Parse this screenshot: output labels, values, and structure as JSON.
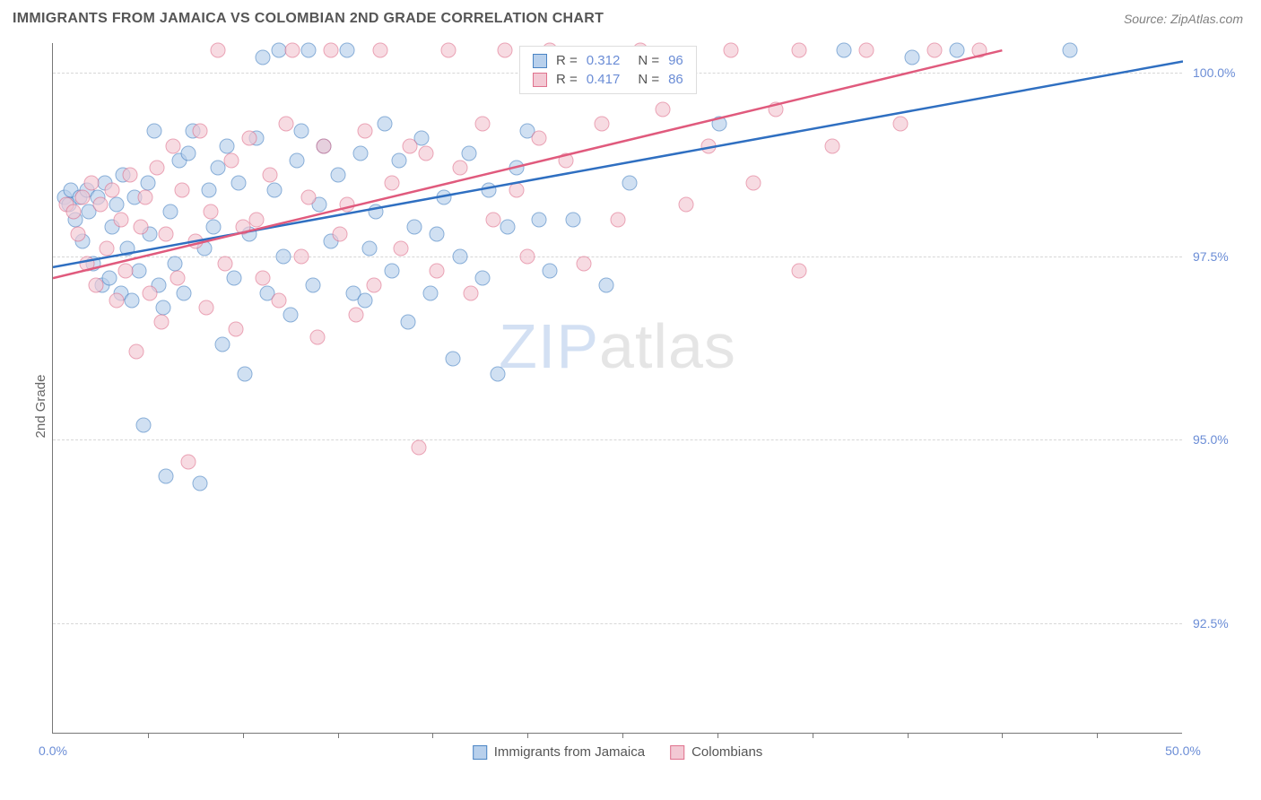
{
  "title": "IMMIGRANTS FROM JAMAICA VS COLOMBIAN 2ND GRADE CORRELATION CHART",
  "source": "Source: ZipAtlas.com",
  "ylabel": "2nd Grade",
  "watermark_a": "ZIP",
  "watermark_b": "atlas",
  "chart": {
    "type": "scatter",
    "xlim": [
      0,
      50
    ],
    "ylim": [
      91,
      100.4
    ],
    "x_ticks": [
      0,
      50
    ],
    "x_minor_ticks": [
      4.2,
      8.4,
      12.6,
      16.8,
      21.0,
      25.2,
      29.4,
      33.6,
      37.8,
      42.0,
      46.2
    ],
    "y_ticks": [
      92.5,
      95.0,
      97.5,
      100.0
    ],
    "y_tick_labels": [
      "92.5%",
      "95.0%",
      "97.5%",
      "100.0%"
    ],
    "x_tick_labels": [
      "0.0%",
      "50.0%"
    ],
    "background_color": "#ffffff",
    "grid_color": "#d7d7d7",
    "axis_color": "#777777",
    "tick_label_color": "#6b8dd6",
    "marker_radius": 8.5,
    "marker_opacity": 0.65,
    "series": [
      {
        "name": "Immigrants from Jamaica",
        "fill": "#b8d0ec",
        "stroke": "#4a84c4",
        "trend_color": "#2f6fc1",
        "trend_width": 2.5,
        "R": "0.312",
        "N": "96",
        "trend": {
          "x1": 0,
          "y1": 97.35,
          "x2": 50,
          "y2": 100.15
        },
        "points": [
          [
            0.5,
            98.3
          ],
          [
            0.7,
            98.2
          ],
          [
            0.8,
            98.4
          ],
          [
            1.0,
            98.0
          ],
          [
            1.2,
            98.3
          ],
          [
            1.3,
            97.7
          ],
          [
            1.5,
            98.4
          ],
          [
            1.6,
            98.1
          ],
          [
            1.8,
            97.4
          ],
          [
            2.0,
            98.3
          ],
          [
            2.2,
            97.1
          ],
          [
            2.3,
            98.5
          ],
          [
            2.5,
            97.2
          ],
          [
            2.6,
            97.9
          ],
          [
            2.8,
            98.2
          ],
          [
            3.0,
            97.0
          ],
          [
            3.1,
            98.6
          ],
          [
            3.3,
            97.6
          ],
          [
            3.5,
            96.9
          ],
          [
            3.6,
            98.3
          ],
          [
            3.8,
            97.3
          ],
          [
            4.0,
            95.2
          ],
          [
            4.2,
            98.5
          ],
          [
            4.3,
            97.8
          ],
          [
            4.5,
            99.2
          ],
          [
            4.7,
            97.1
          ],
          [
            4.9,
            96.8
          ],
          [
            5.0,
            94.5
          ],
          [
            5.2,
            98.1
          ],
          [
            5.4,
            97.4
          ],
          [
            5.6,
            98.8
          ],
          [
            5.8,
            97.0
          ],
          [
            6.0,
            98.9
          ],
          [
            6.2,
            99.2
          ],
          [
            6.5,
            94.4
          ],
          [
            6.7,
            97.6
          ],
          [
            6.9,
            98.4
          ],
          [
            7.1,
            97.9
          ],
          [
            7.3,
            98.7
          ],
          [
            7.5,
            96.3
          ],
          [
            7.7,
            99.0
          ],
          [
            8.0,
            97.2
          ],
          [
            8.2,
            98.5
          ],
          [
            8.5,
            95.9
          ],
          [
            8.7,
            97.8
          ],
          [
            9.0,
            99.1
          ],
          [
            9.3,
            100.2
          ],
          [
            9.5,
            97.0
          ],
          [
            9.8,
            98.4
          ],
          [
            10.0,
            100.3
          ],
          [
            10.2,
            97.5
          ],
          [
            10.5,
            96.7
          ],
          [
            10.8,
            98.8
          ],
          [
            11.0,
            99.2
          ],
          [
            11.3,
            100.3
          ],
          [
            11.5,
            97.1
          ],
          [
            11.8,
            98.2
          ],
          [
            12.0,
            99.0
          ],
          [
            12.3,
            97.7
          ],
          [
            12.6,
            98.6
          ],
          [
            13.0,
            100.3
          ],
          [
            13.3,
            97.0
          ],
          [
            13.6,
            98.9
          ],
          [
            13.8,
            96.9
          ],
          [
            14.0,
            97.6
          ],
          [
            14.3,
            98.1
          ],
          [
            14.7,
            99.3
          ],
          [
            15.0,
            97.3
          ],
          [
            15.3,
            98.8
          ],
          [
            15.7,
            96.6
          ],
          [
            16.0,
            97.9
          ],
          [
            16.3,
            99.1
          ],
          [
            16.7,
            97.0
          ],
          [
            17.0,
            97.8
          ],
          [
            17.3,
            98.3
          ],
          [
            17.7,
            96.1
          ],
          [
            18.0,
            97.5
          ],
          [
            18.4,
            98.9
          ],
          [
            19.0,
            97.2
          ],
          [
            19.3,
            98.4
          ],
          [
            19.7,
            95.9
          ],
          [
            20.1,
            97.9
          ],
          [
            20.5,
            98.7
          ],
          [
            21.0,
            99.2
          ],
          [
            21.5,
            98.0
          ],
          [
            22.0,
            97.3
          ],
          [
            23.0,
            98.0
          ],
          [
            24.0,
            100.2
          ],
          [
            24.5,
            97.1
          ],
          [
            25.5,
            98.5
          ],
          [
            27.0,
            100.2
          ],
          [
            29.5,
            99.3
          ],
          [
            35.0,
            100.3
          ],
          [
            38.0,
            100.2
          ],
          [
            40.0,
            100.3
          ],
          [
            45.0,
            100.3
          ]
        ]
      },
      {
        "name": "Colombians",
        "fill": "#f3c9d4",
        "stroke": "#e0728e",
        "trend_color": "#e05a7d",
        "trend_width": 2.5,
        "R": "0.417",
        "N": "86",
        "trend": {
          "x1": 0,
          "y1": 97.2,
          "x2": 42,
          "y2": 100.3
        },
        "points": [
          [
            0.6,
            98.2
          ],
          [
            0.9,
            98.1
          ],
          [
            1.1,
            97.8
          ],
          [
            1.3,
            98.3
          ],
          [
            1.5,
            97.4
          ],
          [
            1.7,
            98.5
          ],
          [
            1.9,
            97.1
          ],
          [
            2.1,
            98.2
          ],
          [
            2.4,
            97.6
          ],
          [
            2.6,
            98.4
          ],
          [
            2.8,
            96.9
          ],
          [
            3.0,
            98.0
          ],
          [
            3.2,
            97.3
          ],
          [
            3.4,
            98.6
          ],
          [
            3.7,
            96.2
          ],
          [
            3.9,
            97.9
          ],
          [
            4.1,
            98.3
          ],
          [
            4.3,
            97.0
          ],
          [
            4.6,
            98.7
          ],
          [
            4.8,
            96.6
          ],
          [
            5.0,
            97.8
          ],
          [
            5.3,
            99.0
          ],
          [
            5.5,
            97.2
          ],
          [
            5.7,
            98.4
          ],
          [
            6.0,
            94.7
          ],
          [
            6.3,
            97.7
          ],
          [
            6.5,
            99.2
          ],
          [
            6.8,
            96.8
          ],
          [
            7.0,
            98.1
          ],
          [
            7.3,
            100.3
          ],
          [
            7.6,
            97.4
          ],
          [
            7.9,
            98.8
          ],
          [
            8.1,
            96.5
          ],
          [
            8.4,
            97.9
          ],
          [
            8.7,
            99.1
          ],
          [
            9.0,
            98.0
          ],
          [
            9.3,
            97.2
          ],
          [
            9.6,
            98.6
          ],
          [
            10.0,
            96.9
          ],
          [
            10.3,
            99.3
          ],
          [
            10.6,
            100.3
          ],
          [
            11.0,
            97.5
          ],
          [
            11.3,
            98.3
          ],
          [
            11.7,
            96.4
          ],
          [
            12.0,
            99.0
          ],
          [
            12.3,
            100.3
          ],
          [
            12.7,
            97.8
          ],
          [
            13.0,
            98.2
          ],
          [
            13.4,
            96.7
          ],
          [
            13.8,
            99.2
          ],
          [
            14.2,
            97.1
          ],
          [
            14.5,
            100.3
          ],
          [
            15.0,
            98.5
          ],
          [
            15.4,
            97.6
          ],
          [
            15.8,
            99.0
          ],
          [
            16.2,
            94.9
          ],
          [
            16.5,
            98.9
          ],
          [
            17.0,
            97.3
          ],
          [
            17.5,
            100.3
          ],
          [
            18.0,
            98.7
          ],
          [
            18.5,
            97.0
          ],
          [
            19.0,
            99.3
          ],
          [
            19.5,
            98.0
          ],
          [
            20.0,
            100.3
          ],
          [
            20.5,
            98.4
          ],
          [
            21.0,
            97.5
          ],
          [
            21.5,
            99.1
          ],
          [
            22.0,
            100.3
          ],
          [
            22.7,
            98.8
          ],
          [
            23.5,
            97.4
          ],
          [
            24.3,
            99.3
          ],
          [
            25.0,
            98.0
          ],
          [
            26.0,
            100.3
          ],
          [
            27.0,
            99.5
          ],
          [
            28.0,
            98.2
          ],
          [
            29.0,
            99.0
          ],
          [
            30.0,
            100.3
          ],
          [
            31.0,
            98.5
          ],
          [
            32.0,
            99.5
          ],
          [
            33.0,
            100.3
          ],
          [
            33.0,
            97.3
          ],
          [
            34.5,
            99.0
          ],
          [
            36.0,
            100.3
          ],
          [
            37.5,
            99.3
          ],
          [
            39.0,
            100.3
          ],
          [
            41.0,
            100.3
          ]
        ]
      }
    ]
  },
  "legend": {
    "series": [
      {
        "label": "Immigrants from Jamaica",
        "fill": "#b8d0ec",
        "stroke": "#4a84c4"
      },
      {
        "label": "Colombians",
        "fill": "#f3c9d4",
        "stroke": "#e0728e"
      }
    ]
  }
}
